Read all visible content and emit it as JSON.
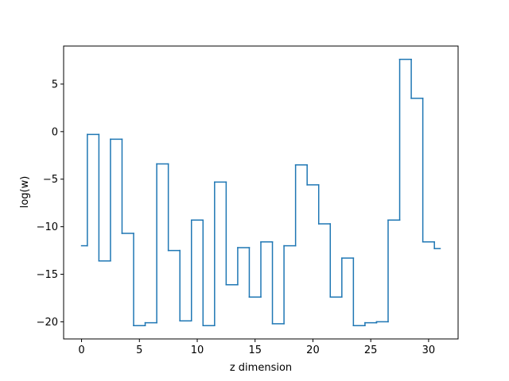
{
  "chart_data": {
    "type": "line",
    "drawstyle": "steps-mid",
    "title": "",
    "xlabel": "z dimension",
    "ylabel": "log(w)",
    "xlim": [
      -1.55,
      32.55
    ],
    "ylim": [
      -21.8,
      9.0
    ],
    "xticks": [
      0,
      5,
      10,
      15,
      20,
      25,
      30
    ],
    "yticks": [
      -20,
      -15,
      -10,
      -5,
      0,
      5
    ],
    "ytick_labels": [
      "−20",
      "−15",
      "−10",
      "−5",
      "0",
      "5"
    ],
    "grid": false,
    "line_color": "#1f77b4",
    "series": [
      {
        "x": [
          0,
          1,
          2,
          3,
          4,
          5,
          6,
          7,
          8,
          9,
          10,
          11,
          12,
          13,
          14,
          15,
          16,
          17,
          18,
          19,
          20,
          21,
          22,
          23,
          24,
          25,
          26,
          27,
          28,
          29,
          30,
          31
        ],
        "values": [
          -12.0,
          -0.3,
          -13.6,
          -0.8,
          -10.7,
          -20.4,
          -20.1,
          -3.4,
          -12.5,
          -19.9,
          -9.3,
          -20.4,
          -5.3,
          -16.1,
          -12.2,
          -17.4,
          -11.6,
          -20.2,
          -12.0,
          -3.5,
          -5.6,
          -9.7,
          -17.4,
          -13.3,
          -20.4,
          -20.1,
          -20.0,
          -9.3,
          7.6,
          3.5,
          -11.6,
          -12.3
        ]
      }
    ]
  }
}
